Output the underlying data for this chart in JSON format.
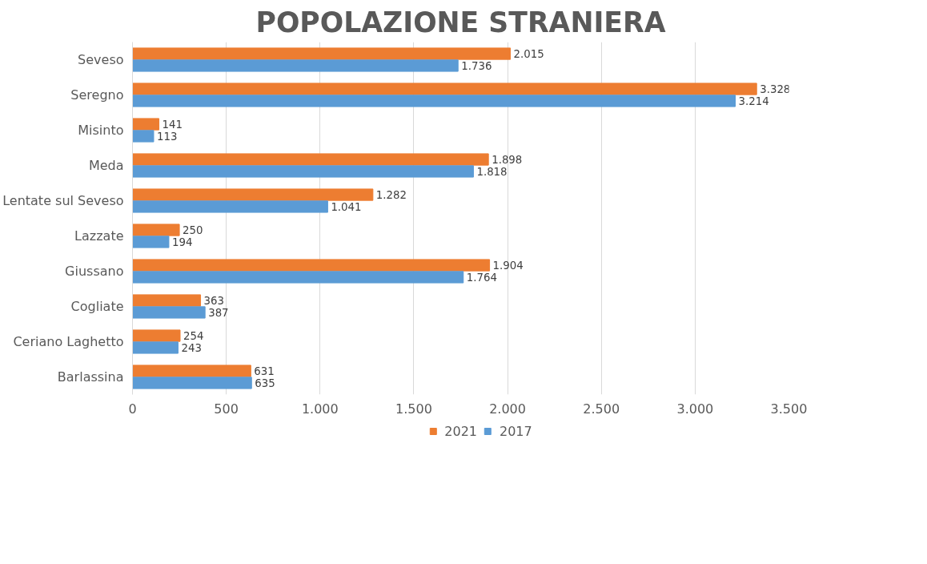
{
  "chart_data": {
    "type": "bar",
    "orientation": "horizontal",
    "title": "POPOLAZIONE STRANIERA",
    "categories": [
      "Seveso",
      "Seregno",
      "Misinto",
      "Meda",
      "Lentate sul Seveso",
      "Lazzate",
      "Giussano",
      "Cogliate",
      "Ceriano Laghetto",
      "Barlassina"
    ],
    "series": [
      {
        "name": "2021",
        "color": "#ed7d31",
        "values": [
          2015,
          3328,
          141,
          1898,
          1282,
          250,
          1904,
          363,
          254,
          631
        ],
        "value_labels": [
          "2.015",
          "3.328",
          "141",
          "1.898",
          "1.282",
          "250",
          "1.904",
          "363",
          "254",
          "631"
        ]
      },
      {
        "name": "2017",
        "color": "#5b9bd5",
        "values": [
          1736,
          3214,
          113,
          1818,
          1041,
          194,
          1764,
          387,
          243,
          635
        ],
        "value_labels": [
          "1.736",
          "3.214",
          "113",
          "1.818",
          "1.041",
          "194",
          "1.764",
          "387",
          "243",
          "635"
        ]
      }
    ],
    "xlim": [
      0,
      3500
    ],
    "xticks": [
      0,
      {
        "value": 500,
        "label": "500"
      },
      {
        "value": 1000,
        "label": "1.000"
      },
      {
        "value": 1500,
        "label": "1.500"
      },
      {
        "value": 2000,
        "label": "2.000"
      },
      {
        "value": 2500,
        "label": "2.500"
      },
      {
        "value": 3000,
        "label": "3.000"
      },
      {
        "value": 3500,
        "label": "3.500"
      }
    ],
    "grid": "x",
    "legend": "bottom"
  }
}
